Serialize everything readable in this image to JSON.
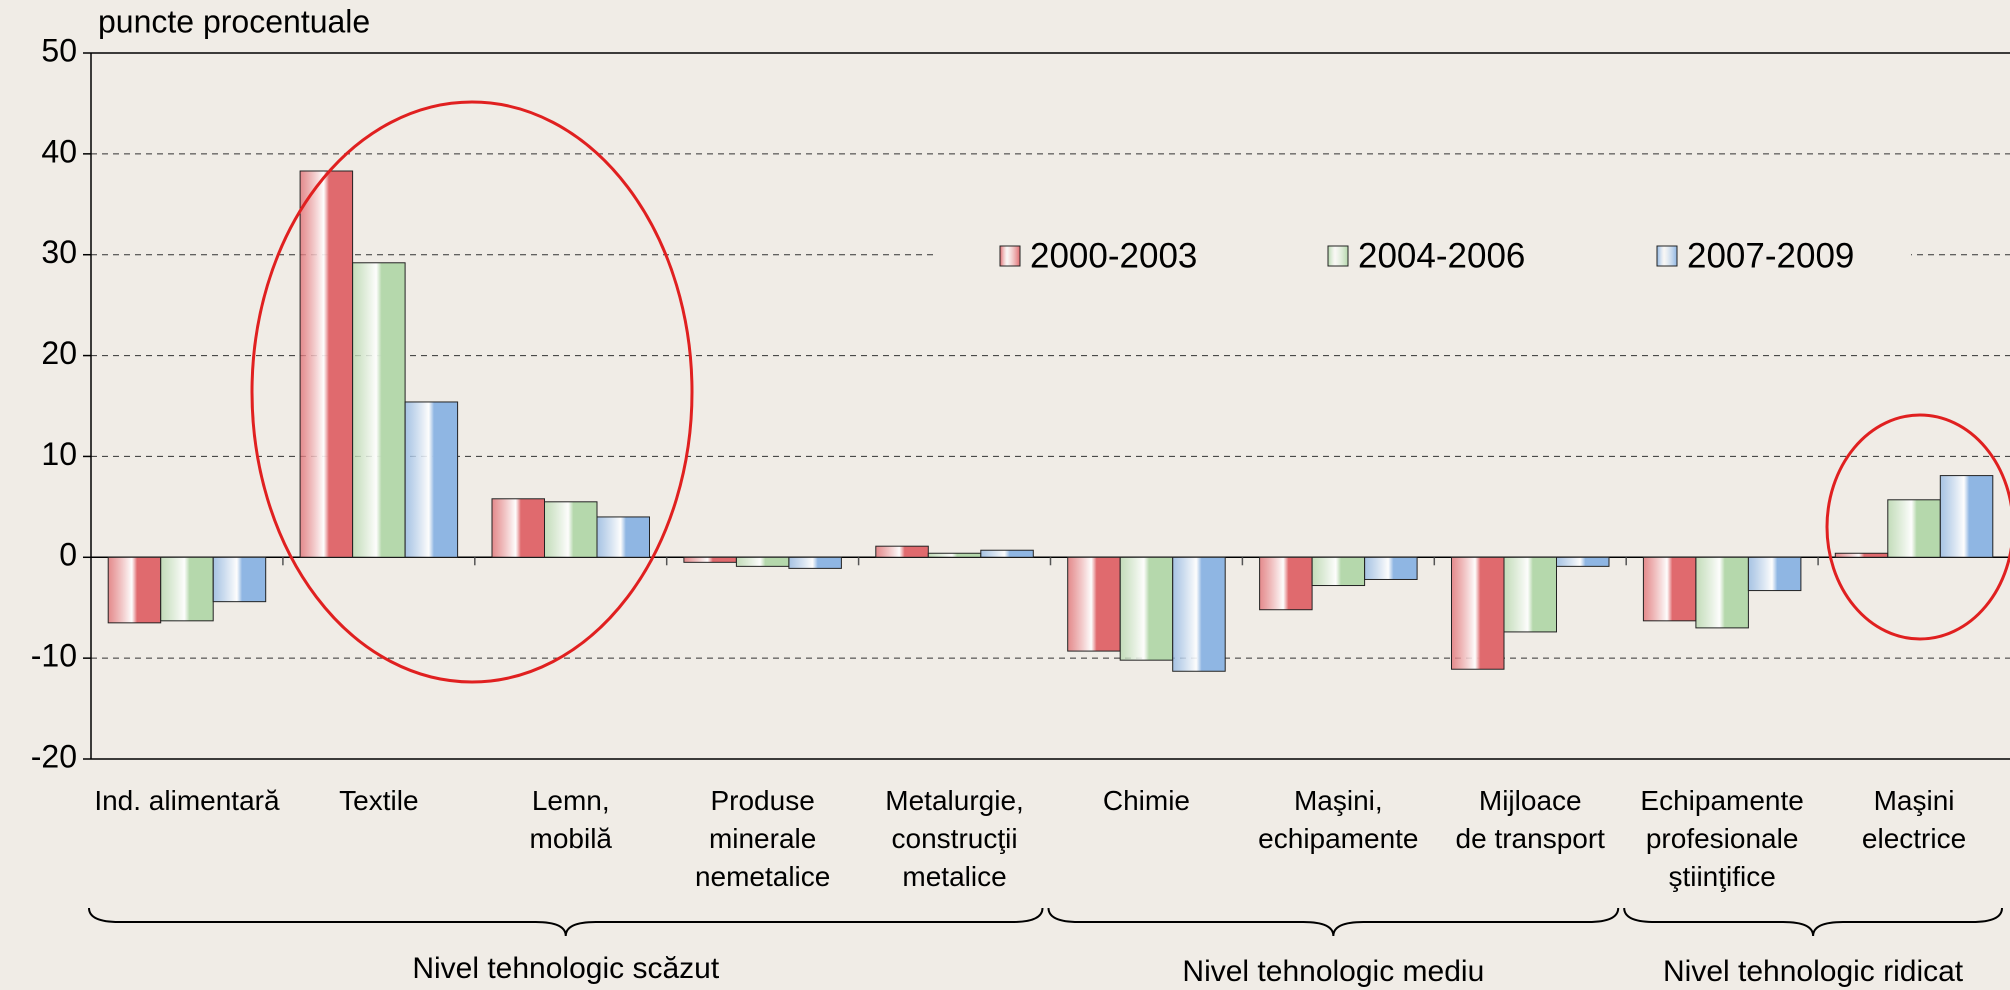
{
  "chart_data": {
    "type": "bar",
    "y_label": "puncte procentuale",
    "categories": [
      "Ind. alimentară",
      "Textile",
      "Lemn,\nmobilă",
      "Produse\nminerale\nnemetalice",
      "Metalurgie,\nconstrucţii\nmetalice",
      "Chimie",
      "Maşini,\nechipamente",
      "Mijloace\nde transport",
      "Echipamente\nprofesionale\nştiinţifice",
      "Maşini\nelectrice"
    ],
    "series": [
      {
        "name": "2000-2003",
        "color": "#e06a6e",
        "values": [
          -6.5,
          38.3,
          5.8,
          -0.5,
          1.1,
          -9.3,
          -5.2,
          -11.1,
          -6.3,
          0.4
        ]
      },
      {
        "name": "2004-2006",
        "color": "#b5d8ac",
        "values": [
          -6.3,
          29.2,
          5.5,
          -0.9,
          0.4,
          -10.2,
          -2.8,
          -7.4,
          -7.0,
          5.7
        ]
      },
      {
        "name": "2007-2009",
        "color": "#8fb6e3",
        "values": [
          -4.4,
          15.4,
          4.0,
          -1.1,
          0.7,
          -11.3,
          -2.2,
          -0.9,
          -3.3,
          8.1
        ]
      }
    ],
    "groups": [
      "Nivel tehnologic scăzut",
      "Nivel tehnologic mediu",
      "Nivel tehnologic ridicat"
    ],
    "ylim": [
      -20,
      50
    ],
    "yticks": [
      -20,
      -10,
      0,
      10,
      20,
      30,
      40,
      50
    ],
    "grid": true,
    "legend": "top-center"
  }
}
